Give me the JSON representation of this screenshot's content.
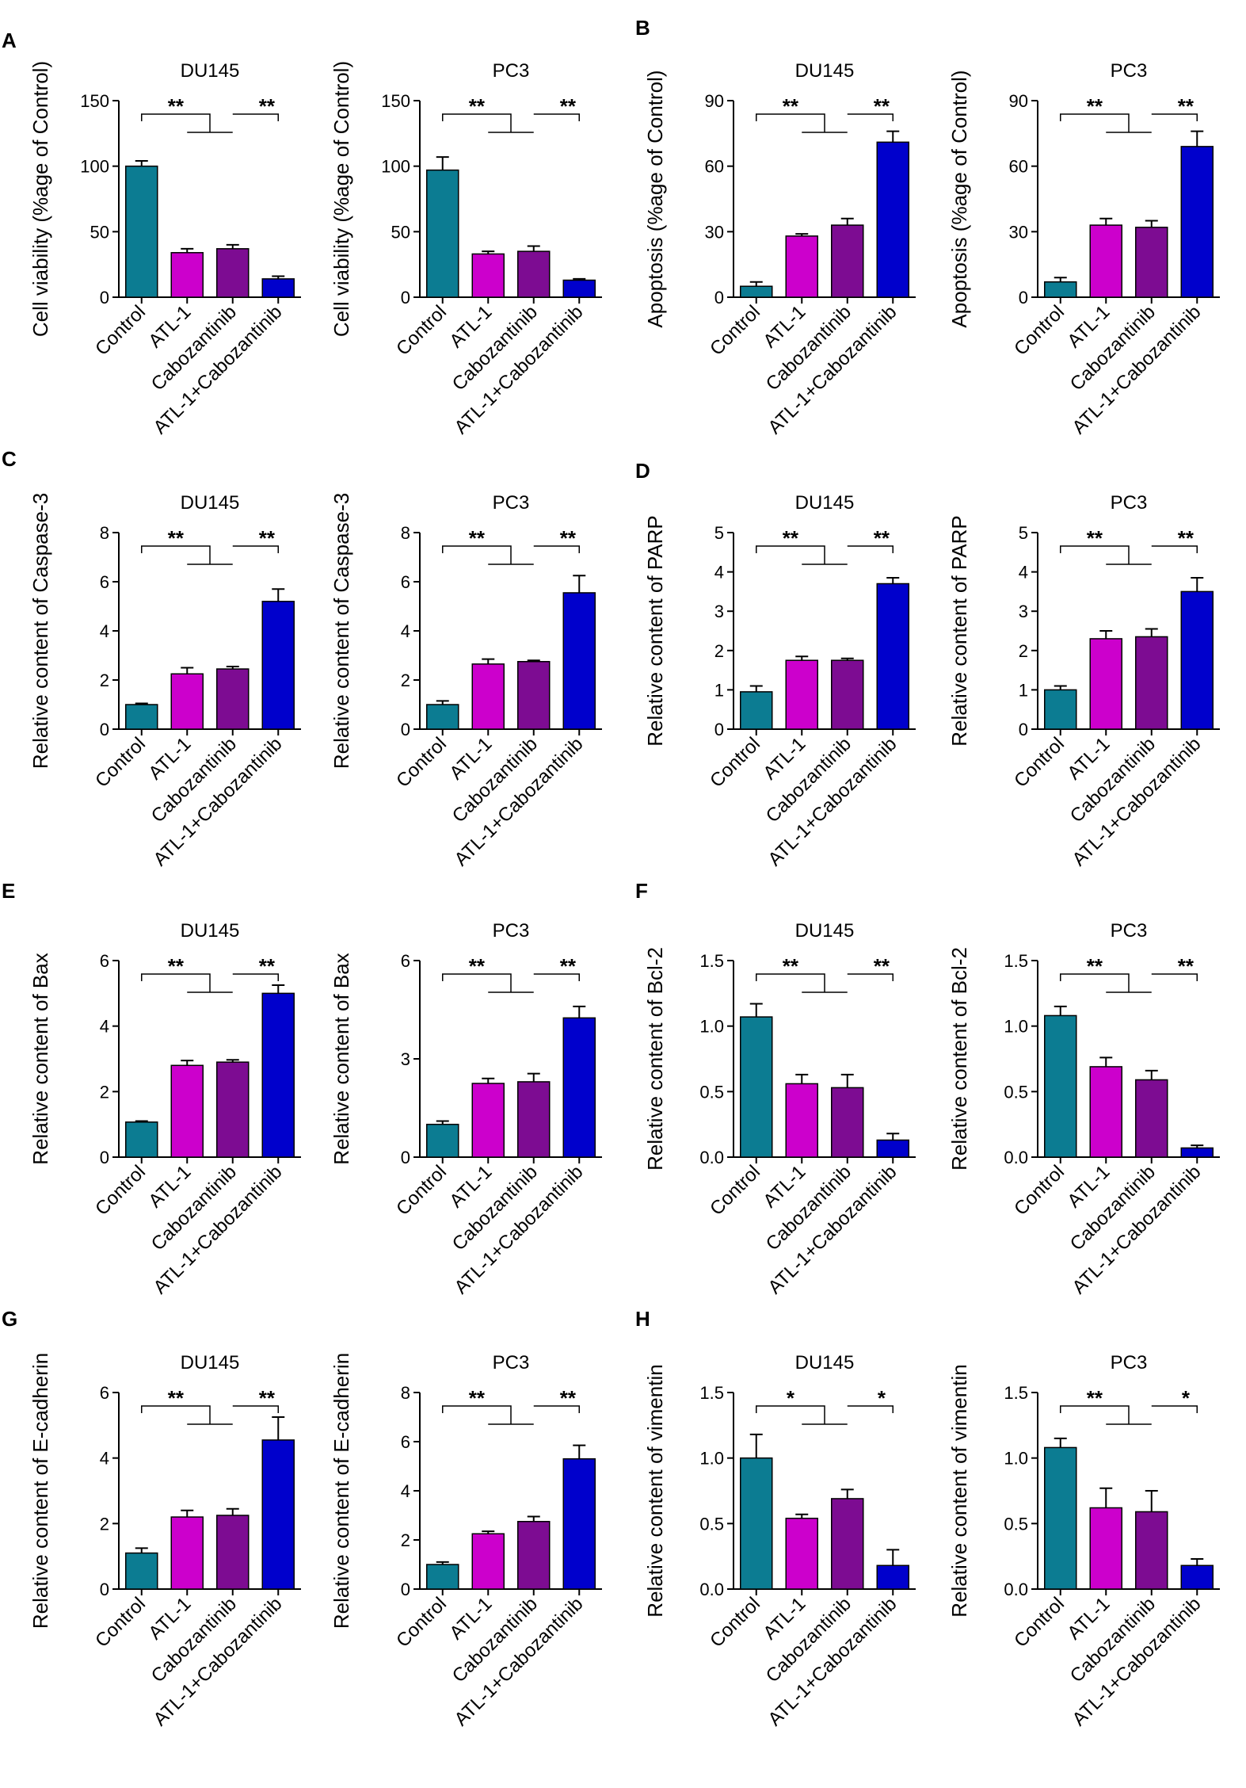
{
  "colors": {
    "control": "#0C7C92",
    "atl1": "#CC00CC",
    "cabozantinib": "#7D0C92",
    "combo": "#0000CC"
  },
  "categories": [
    "Control",
    "ATL-1",
    "Cabozantinib",
    "ATL-1+Cabozantinib"
  ],
  "panels": [
    {
      "letter": "A"
    },
    {
      "letter": "B"
    },
    {
      "letter": "C"
    },
    {
      "letter": "D"
    },
    {
      "letter": "E"
    },
    {
      "letter": "F"
    },
    {
      "letter": "G"
    },
    {
      "letter": "H"
    }
  ],
  "chart_data": [
    {
      "type": "bar",
      "title": "DU145",
      "ylabel": "Cell viability (%age of Control)",
      "categories": [
        "Control",
        "ATL-1",
        "Cabozantinib",
        "ATL-1+Cabozantinib"
      ],
      "values": [
        100,
        34,
        37,
        14
      ],
      "errors": [
        4,
        3,
        3,
        2
      ],
      "ylim": [
        0,
        150
      ],
      "yticks": [
        "0",
        "50",
        "100",
        "150"
      ],
      "significance": [
        "**",
        "**"
      ]
    },
    {
      "type": "bar",
      "title": "PC3",
      "ylabel": "Cell viability (%age of Control)",
      "categories": [
        "Control",
        "ATL-1",
        "Cabozantinib",
        "ATL-1+Cabozantinib"
      ],
      "values": [
        97,
        33,
        35,
        13
      ],
      "errors": [
        10,
        2,
        4,
        1
      ],
      "ylim": [
        0,
        150
      ],
      "yticks": [
        "0",
        "50",
        "100",
        "150"
      ],
      "significance": [
        "**",
        "**"
      ]
    },
    {
      "type": "bar",
      "title": "DU145",
      "ylabel": "Apoptosis (%age of Control)",
      "categories": [
        "Control",
        "ATL-1",
        "Cabozantinib",
        "ATL-1+Cabozantinib"
      ],
      "values": [
        5,
        28,
        33,
        71
      ],
      "errors": [
        2,
        1,
        3,
        5
      ],
      "ylim": [
        0,
        90
      ],
      "yticks": [
        "0",
        "30",
        "60",
        "90"
      ],
      "significance": [
        "**",
        "**"
      ]
    },
    {
      "type": "bar",
      "title": "PC3",
      "ylabel": "Apoptosis (%age of Control)",
      "categories": [
        "Control",
        "ATL-1",
        "Cabozantinib",
        "ATL-1+Cabozantinib"
      ],
      "values": [
        7,
        33,
        32,
        69
      ],
      "errors": [
        2,
        3,
        3,
        7
      ],
      "ylim": [
        0,
        90
      ],
      "yticks": [
        "0",
        "30",
        "60",
        "90"
      ],
      "significance": [
        "**",
        "**"
      ]
    },
    {
      "type": "bar",
      "title": "DU145",
      "ylabel": "Relative content of Caspase-3",
      "categories": [
        "Control",
        "ATL-1",
        "Cabozantinib",
        "ATL-1+Cabozantinib"
      ],
      "values": [
        1.0,
        2.25,
        2.45,
        5.2
      ],
      "errors": [
        0.05,
        0.25,
        0.1,
        0.5
      ],
      "ylim": [
        0,
        8
      ],
      "yticks": [
        "0",
        "2",
        "4",
        "6",
        "8"
      ],
      "significance": [
        "**",
        "**"
      ]
    },
    {
      "type": "bar",
      "title": "PC3",
      "ylabel": "Relative content of Caspase-3",
      "categories": [
        "Control",
        "ATL-1",
        "Cabozantinib",
        "ATL-1+Cabozantinib"
      ],
      "values": [
        1.0,
        2.65,
        2.75,
        5.55
      ],
      "errors": [
        0.15,
        0.2,
        0.05,
        0.7
      ],
      "ylim": [
        0,
        8
      ],
      "yticks": [
        "0",
        "2",
        "4",
        "6",
        "8"
      ],
      "significance": [
        "**",
        "**"
      ]
    },
    {
      "type": "bar",
      "title": "DU145",
      "ylabel": "Relative content of PARP",
      "categories": [
        "Control",
        "ATL-1",
        "Cabozantinib",
        "ATL-1+Cabozantinib"
      ],
      "values": [
        0.95,
        1.75,
        1.75,
        3.7
      ],
      "errors": [
        0.15,
        0.1,
        0.05,
        0.15
      ],
      "ylim": [
        0,
        5
      ],
      "yticks": [
        "0",
        "1",
        "2",
        "3",
        "4",
        "5"
      ],
      "significance": [
        "**",
        "**"
      ]
    },
    {
      "type": "bar",
      "title": "PC3",
      "ylabel": "Relative content of PARP",
      "categories": [
        "Control",
        "ATL-1",
        "Cabozantinib",
        "ATL-1+Cabozantinib"
      ],
      "values": [
        1.0,
        2.3,
        2.35,
        3.5
      ],
      "errors": [
        0.1,
        0.2,
        0.2,
        0.35
      ],
      "ylim": [
        0,
        5
      ],
      "yticks": [
        "0",
        "1",
        "2",
        "3",
        "4",
        "5"
      ],
      "significance": [
        "**",
        "**"
      ]
    },
    {
      "type": "bar",
      "title": "DU145",
      "ylabel": "Relative content of Bax",
      "categories": [
        "Control",
        "ATL-1",
        "Cabozantinib",
        "ATL-1+Cabozantinib"
      ],
      "values": [
        1.07,
        2.8,
        2.9,
        5.0
      ],
      "errors": [
        0.03,
        0.15,
        0.07,
        0.25
      ],
      "ylim": [
        0,
        6
      ],
      "yticks": [
        "0",
        "2",
        "4",
        "6"
      ],
      "significance": [
        "**",
        "**"
      ]
    },
    {
      "type": "bar",
      "title": "PC3",
      "ylabel": "Relative content of Bax",
      "categories": [
        "Control",
        "ATL-1",
        "Cabozantinib",
        "ATL-1+Cabozantinib"
      ],
      "values": [
        1.0,
        2.25,
        2.3,
        4.25
      ],
      "errors": [
        0.1,
        0.15,
        0.25,
        0.35
      ],
      "ylim": [
        0,
        6
      ],
      "yticks": [
        "0",
        "3",
        "6"
      ],
      "significance": [
        "**",
        "**"
      ]
    },
    {
      "type": "bar",
      "title": "DU145",
      "ylabel": "Relative content of Bcl-2",
      "categories": [
        "Control",
        "ATL-1",
        "Cabozantinib",
        "ATL-1+Cabozantinib"
      ],
      "values": [
        1.07,
        0.56,
        0.53,
        0.13
      ],
      "errors": [
        0.1,
        0.07,
        0.1,
        0.05
      ],
      "ylim": [
        0,
        1.5
      ],
      "yticks": [
        "0.0",
        "0.5",
        "1.0",
        "1.5"
      ],
      "significance": [
        "**",
        "**"
      ]
    },
    {
      "type": "bar",
      "title": "PC3",
      "ylabel": "Relative content of Bcl-2",
      "categories": [
        "Control",
        "ATL-1",
        "Cabozantinib",
        "ATL-1+Cabozantinib"
      ],
      "values": [
        1.08,
        0.69,
        0.59,
        0.07
      ],
      "errors": [
        0.07,
        0.07,
        0.07,
        0.02
      ],
      "ylim": [
        0,
        1.5
      ],
      "yticks": [
        "0.0",
        "0.5",
        "1.0",
        "1.5"
      ],
      "significance": [
        "**",
        "**"
      ]
    },
    {
      "type": "bar",
      "title": "DU145",
      "ylabel": "Relative content of E-cadherin",
      "categories": [
        "Control",
        "ATL-1",
        "Cabozantinib",
        "ATL-1+Cabozantinib"
      ],
      "values": [
        1.1,
        2.2,
        2.25,
        4.55
      ],
      "errors": [
        0.15,
        0.2,
        0.2,
        0.7
      ],
      "ylim": [
        0,
        6
      ],
      "yticks": [
        "0",
        "2",
        "4",
        "6"
      ],
      "significance": [
        "**",
        "**"
      ]
    },
    {
      "type": "bar",
      "title": "PC3",
      "ylabel": "Relative content of E-cadherin",
      "categories": [
        "Control",
        "ATL-1",
        "Cabozantinib",
        "ATL-1+Cabozantinib"
      ],
      "values": [
        1.0,
        2.25,
        2.75,
        5.3
      ],
      "errors": [
        0.1,
        0.1,
        0.2,
        0.55
      ],
      "ylim": [
        0,
        8
      ],
      "yticks": [
        "0",
        "2",
        "4",
        "6",
        "8"
      ],
      "significance": [
        "**",
        "**"
      ]
    },
    {
      "type": "bar",
      "title": "DU145",
      "ylabel": "Relative content of vimentin",
      "categories": [
        "Control",
        "ATL-1",
        "Cabozantinib",
        "ATL-1+Cabozantinib"
      ],
      "values": [
        1.0,
        0.54,
        0.69,
        0.18
      ],
      "errors": [
        0.18,
        0.03,
        0.07,
        0.12
      ],
      "ylim": [
        0,
        1.5
      ],
      "yticks": [
        "0.0",
        "0.5",
        "1.0",
        "1.5"
      ],
      "significance": [
        "*",
        "*"
      ]
    },
    {
      "type": "bar",
      "title": "PC3",
      "ylabel": "Relative content of vimentin",
      "categories": [
        "Control",
        "ATL-1",
        "Cabozantinib",
        "ATL-1+Cabozantinib"
      ],
      "values": [
        1.08,
        0.62,
        0.59,
        0.18
      ],
      "errors": [
        0.07,
        0.15,
        0.16,
        0.05
      ],
      "ylim": [
        0,
        1.5
      ],
      "yticks": [
        "0.0",
        "0.5",
        "1.0",
        "1.5"
      ],
      "significance": [
        "**",
        "*"
      ]
    }
  ]
}
